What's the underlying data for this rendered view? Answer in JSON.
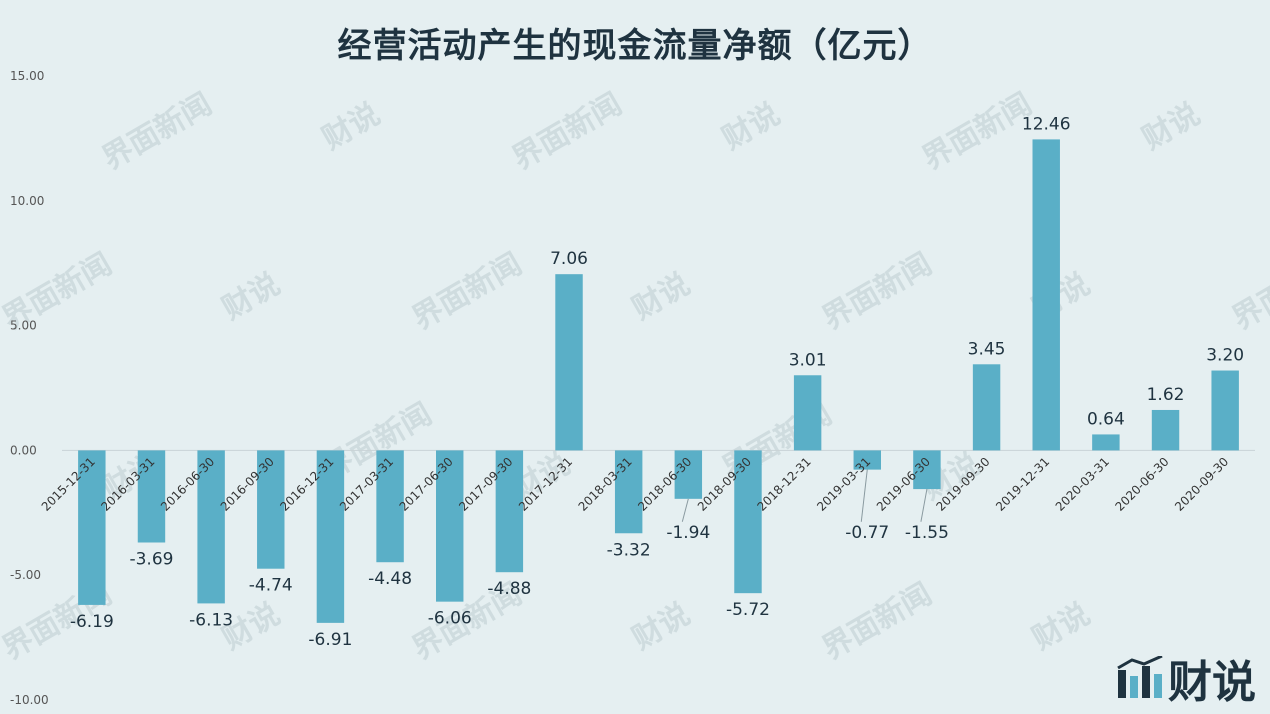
{
  "colors": {
    "bar": "#5aafc7",
    "background": "#e5eff1",
    "text": "#1f3340"
  },
  "logo": {
    "text": "财说",
    "icon": "bar-chart-logo-icon"
  },
  "watermark": {
    "text_a": "界面新闻",
    "text_b": "财说"
  },
  "chart_data": {
    "type": "bar",
    "title": "经营活动产生的现金流量净额（亿元）",
    "xlabel": "",
    "ylabel": "",
    "ylim": [
      -10,
      15
    ],
    "yticks": [
      "15.00",
      "10.00",
      "5.00",
      "0.00",
      "-5.00",
      "-10.00"
    ],
    "grid": false,
    "categories": [
      "2015-12-31",
      "2016-03-31",
      "2016-06-30",
      "2016-09-30",
      "2016-12-31",
      "2017-03-31",
      "2017-06-30",
      "2017-09-30",
      "2017-12-31",
      "2018-03-31",
      "2018-06-30",
      "2018-09-30",
      "2018-12-31",
      "2019-03-31",
      "2019-06-30",
      "2019-09-30",
      "2019-12-31",
      "2020-03-31",
      "2020-06-30",
      "2020-09-30"
    ],
    "values": [
      -6.19,
      -3.69,
      -6.13,
      -4.74,
      -6.91,
      -4.48,
      -6.06,
      -4.88,
      7.06,
      -3.32,
      -1.94,
      -5.72,
      3.01,
      -0.77,
      -1.55,
      3.45,
      12.46,
      0.64,
      1.62,
      3.2
    ],
    "labels": [
      "-6.19",
      "-3.69",
      "-6.13",
      "-4.74",
      "-6.91",
      "-4.48",
      "-6.06",
      "-4.88",
      "7.06",
      "-3.32",
      "-1.94",
      "-5.72",
      "3.01",
      "-0.77",
      "-1.55",
      "3.45",
      "12.46",
      "0.64",
      "1.62",
      "3.20"
    ]
  }
}
